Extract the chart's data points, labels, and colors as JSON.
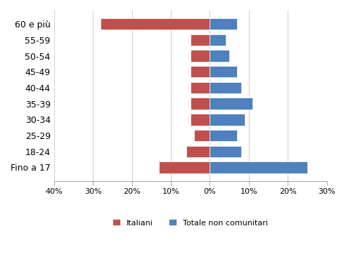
{
  "categories": [
    "60 e più",
    "55-59",
    "50-54",
    "45-49",
    "40-44",
    "35-39",
    "30-34",
    "25-29",
    "18-24",
    "Fino a 17"
  ],
  "italiani": [
    -28,
    -5,
    -5,
    -5,
    -5,
    -5,
    -5,
    -4,
    -6,
    -13
  ],
  "non_comunitari": [
    7,
    4,
    5,
    7,
    8,
    11,
    9,
    7,
    8,
    25
  ],
  "color_italiani": "#c0504d",
  "color_non_comunitari": "#4f81bd",
  "xlim": [
    -40,
    30
  ],
  "xticks": [
    -40,
    -30,
    -20,
    -10,
    0,
    10,
    20,
    30
  ],
  "xtick_labels": [
    "40%",
    "30%",
    "20%",
    "10%",
    "0%",
    "10%",
    "20%",
    "30%"
  ],
  "legend_italiani": "Italiani",
  "legend_non_comunitari": "Totale non comunitari",
  "background_color": "#ffffff",
  "grid_color": "#d3d3d3"
}
